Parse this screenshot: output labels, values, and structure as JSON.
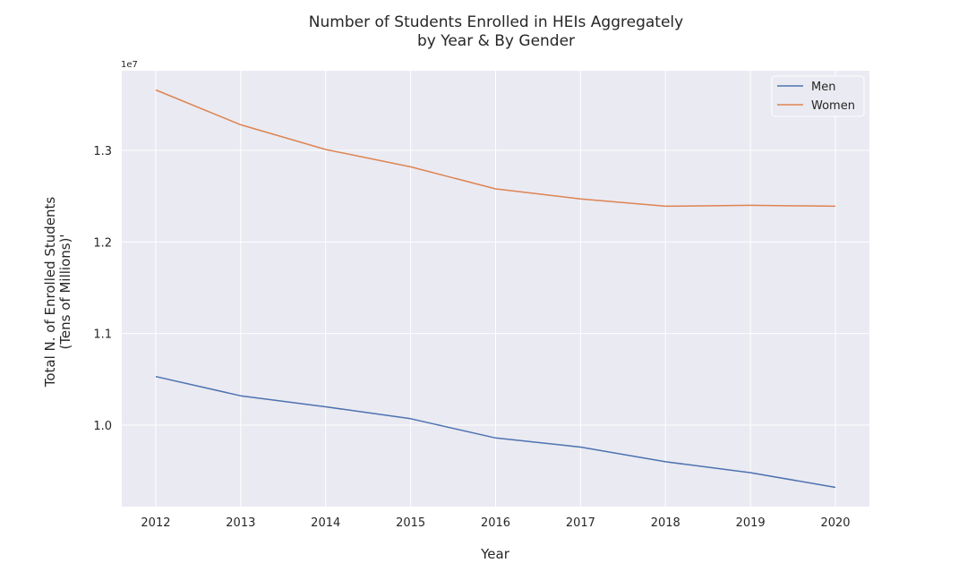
{
  "chart_data": {
    "type": "line",
    "title_line1": "Number of Students Enrolled in HEIs Aggregately",
    "title_line2": "by Year &  By Gender",
    "xlabel": "Year",
    "ylabel_line1": "Total N. of Enrolled Students",
    "ylabel_line2": "(Tens of Millions)'",
    "y_offset_label": "1e7",
    "x": [
      2012,
      2013,
      2014,
      2015,
      2016,
      2017,
      2018,
      2019,
      2020
    ],
    "xlim": [
      2011.6,
      2020.4
    ],
    "ylim": [
      9.11,
      13.87
    ],
    "y_ticks": [
      10.0,
      11.0,
      12.0,
      13.0
    ],
    "y_tick_labels": [
      "1.0",
      "1.1",
      "1.2",
      "1.3"
    ],
    "y_unit": "millions",
    "grid": true,
    "legend_position": "top-right",
    "series": [
      {
        "name": "Men",
        "color": "#4c72b0",
        "values": [
          10.53,
          10.32,
          10.2,
          10.07,
          9.86,
          9.76,
          9.6,
          9.48,
          9.32
        ]
      },
      {
        "name": "Women",
        "color": "#dd8452",
        "values": [
          13.66,
          13.28,
          13.01,
          12.82,
          12.58,
          12.47,
          12.39,
          12.4,
          12.39
        ]
      }
    ],
    "background_color": "#eaeaf2",
    "grid_color": "#ffffff"
  }
}
